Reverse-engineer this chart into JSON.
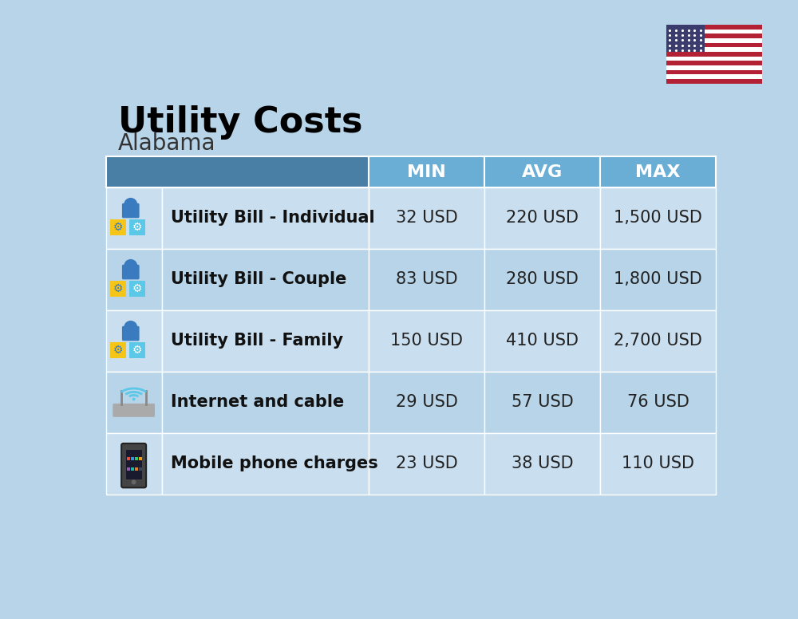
{
  "title": "Utility Costs",
  "subtitle": "Alabama",
  "background_color": "#b8d4e8",
  "header_color_dark": "#4a7fa5",
  "header_color_light": "#6aaed6",
  "row_color_light": "#c9dff0",
  "row_color_dark": "#b8d4e8",
  "header_text_color": "#ffffff",
  "title_color": "#000000",
  "subtitle_color": "#333333",
  "col_headers": [
    "MIN",
    "AVG",
    "MAX"
  ],
  "rows": [
    {
      "label": "Utility Bill - Individual",
      "min": "32 USD",
      "avg": "220 USD",
      "max": "1,500 USD",
      "icon": "utility"
    },
    {
      "label": "Utility Bill - Couple",
      "min": "83 USD",
      "avg": "280 USD",
      "max": "1,800 USD",
      "icon": "utility"
    },
    {
      "label": "Utility Bill - Family",
      "min": "150 USD",
      "avg": "410 USD",
      "max": "2,700 USD",
      "icon": "utility"
    },
    {
      "label": "Internet and cable",
      "min": "29 USD",
      "avg": "57 USD",
      "max": "76 USD",
      "icon": "internet"
    },
    {
      "label": "Mobile phone charges",
      "min": "23 USD",
      "avg": "38 USD",
      "max": "110 USD",
      "icon": "mobile"
    }
  ],
  "title_fontsize": 32,
  "subtitle_fontsize": 20,
  "header_fontsize": 16,
  "cell_fontsize": 15,
  "label_fontsize": 15
}
